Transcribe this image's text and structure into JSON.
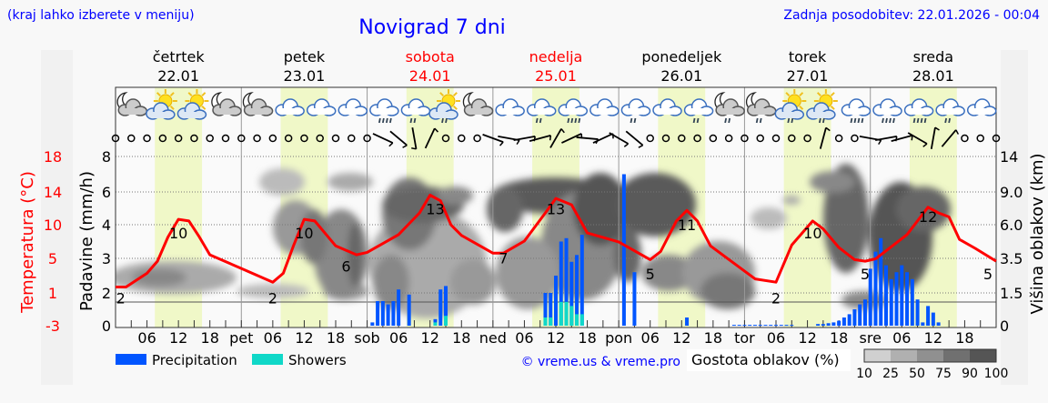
{
  "header": {
    "menu_hint": "(kraj lahko izberete v meniju)",
    "title": "Novigrad 7 dni",
    "updated": "Zadnja posodobitev: 22.01.2026 - 00:04"
  },
  "days": [
    {
      "name": "četrtek",
      "date": "22.01",
      "weekend": false
    },
    {
      "name": "petek",
      "date": "23.01",
      "weekend": false
    },
    {
      "name": "sobota",
      "date": "24.01",
      "weekend": true
    },
    {
      "name": "nedelja",
      "date": "25.01",
      "weekend": true
    },
    {
      "name": "ponedeljek",
      "date": "26.01",
      "weekend": false
    },
    {
      "name": "torek",
      "date": "27.01",
      "weekend": false
    },
    {
      "name": "sreda",
      "date": "28.01",
      "weekend": false
    }
  ],
  "colors": {
    "temperature": "#ff0000",
    "precipitation": "#0055ff",
    "showers": "#10d8c8",
    "daylight": "#f0f8c8",
    "weekend": "#ff0000",
    "link": "#0000ff"
  },
  "chart_data": {
    "type": "line",
    "title": "Novigrad 7 dni",
    "x_unit": "hours from 22.01 00:00",
    "xlim": [
      0,
      168
    ],
    "x_tick_labels": [
      "",
      "06",
      "12",
      "18",
      "pet",
      "06",
      "12",
      "18",
      "sob",
      "06",
      "12",
      "18",
      "ned",
      "06",
      "12",
      "18",
      "pon",
      "06",
      "12",
      "18",
      "tor",
      "06",
      "12",
      "18",
      "sre",
      "06",
      "12",
      "18"
    ],
    "left_axis_temp": {
      "label": "Temperatura (°C)",
      "ticks": [
        "18",
        "14",
        "10",
        "5",
        "1",
        "-3"
      ],
      "ylim": [
        -3,
        18
      ]
    },
    "left_axis_precip": {
      "label": "Padavine (mm/h)",
      "ticks": [
        "8",
        "6",
        "4",
        "3",
        "2",
        "0"
      ]
    },
    "right_axis_cloud": {
      "label": "Višina oblakov (km)",
      "ticks": [
        "14",
        "9.0",
        "6.0",
        "3.5",
        "1.5",
        "0"
      ]
    },
    "temperature": [
      [
        0,
        1.8
      ],
      [
        2,
        1.8
      ],
      [
        6,
        3.5
      ],
      [
        8,
        5
      ],
      [
        10,
        8
      ],
      [
        12,
        10.2
      ],
      [
        14,
        10
      ],
      [
        16,
        8
      ],
      [
        18,
        5.8
      ],
      [
        24,
        4.1
      ],
      [
        30,
        2.4
      ],
      [
        32,
        3.5
      ],
      [
        34,
        7
      ],
      [
        36,
        10.2
      ],
      [
        38,
        10
      ],
      [
        42,
        6.9
      ],
      [
        46,
        5.8
      ],
      [
        48,
        6.1
      ],
      [
        54,
        8.3
      ],
      [
        58,
        11
      ],
      [
        60,
        13.2
      ],
      [
        62,
        12.5
      ],
      [
        64,
        9.5
      ],
      [
        66,
        8.2
      ],
      [
        72,
        6
      ],
      [
        74,
        6
      ],
      [
        78,
        7.5
      ],
      [
        82,
        11
      ],
      [
        84,
        12.8
      ],
      [
        87,
        12
      ],
      [
        90,
        8.5
      ],
      [
        96,
        7.4
      ],
      [
        102,
        5.2
      ],
      [
        104,
        6.2
      ],
      [
        107,
        10
      ],
      [
        109,
        11.3
      ],
      [
        111,
        10
      ],
      [
        113.5,
        6.9
      ],
      [
        122,
        2.8
      ],
      [
        126,
        2.4
      ],
      [
        129,
        7
      ],
      [
        133,
        10
      ],
      [
        135,
        9
      ],
      [
        138,
        6.7
      ],
      [
        141,
        5.2
      ],
      [
        143,
        5
      ],
      [
        145,
        5.3
      ],
      [
        149,
        7.3
      ],
      [
        151,
        8.3
      ],
      [
        155,
        11.7
      ],
      [
        157,
        11
      ],
      [
        159,
        10.5
      ],
      [
        161,
        7.7
      ],
      [
        164,
        6.6
      ],
      [
        168,
        5
      ]
    ],
    "temp_labels": [
      [
        1,
        "2"
      ],
      [
        12,
        "10"
      ],
      [
        30,
        "2"
      ],
      [
        36,
        "10"
      ],
      [
        44,
        "6"
      ],
      [
        61,
        "13"
      ],
      [
        74,
        "7"
      ],
      [
        84,
        "13"
      ],
      [
        102,
        "5"
      ],
      [
        109,
        "11"
      ],
      [
        126,
        "2"
      ],
      [
        133,
        "10"
      ],
      [
        143,
        "5"
      ],
      [
        155,
        "12"
      ],
      [
        168,
        "5"
      ]
    ],
    "precipitation": [
      [
        49,
        0.2,
        0
      ],
      [
        50,
        1.5,
        0
      ],
      [
        51,
        1.5,
        0
      ],
      [
        52,
        1.3,
        0
      ],
      [
        53,
        1.5,
        0
      ],
      [
        54,
        2.1,
        0
      ],
      [
        56,
        1.9,
        0
      ],
      [
        61,
        0.4,
        0.2
      ],
      [
        62,
        2.1,
        0
      ],
      [
        63,
        2.2,
        0.6
      ],
      [
        82,
        2.0,
        0.5
      ],
      [
        83,
        2.0,
        0.5
      ],
      [
        84,
        2.5,
        0
      ],
      [
        85,
        3.5,
        1.45
      ],
      [
        86,
        3.6,
        1.45
      ],
      [
        87,
        2.9,
        1.2
      ],
      [
        88,
        3.1,
        0.7
      ],
      [
        89,
        3.7,
        0.7
      ],
      [
        97,
        7.0,
        0
      ],
      [
        99,
        2.6,
        0
      ],
      [
        109,
        0.5,
        0
      ],
      [
        118,
        0.05,
        0
      ],
      [
        119,
        0.05,
        0
      ],
      [
        120,
        0.05,
        0
      ],
      [
        121,
        0.05,
        0
      ],
      [
        122,
        0.05,
        0
      ],
      [
        123,
        0.05,
        0
      ],
      [
        124,
        0.05,
        0
      ],
      [
        125,
        0.05,
        0
      ],
      [
        126,
        0.05,
        0
      ],
      [
        127,
        0.05,
        0
      ],
      [
        128,
        0.05,
        0
      ],
      [
        129,
        0.05,
        0
      ],
      [
        134,
        0.1,
        0
      ],
      [
        135,
        0.1,
        0
      ],
      [
        136,
        0.15,
        0
      ],
      [
        137,
        0.2,
        0
      ],
      [
        138,
        0.3,
        0
      ],
      [
        139,
        0.5,
        0
      ],
      [
        140,
        0.7,
        0
      ],
      [
        141,
        1.0,
        0
      ],
      [
        142,
        1.3,
        0
      ],
      [
        143,
        1.6,
        0
      ],
      [
        144,
        2.7,
        0
      ],
      [
        145,
        3.2,
        0
      ],
      [
        146,
        3.6,
        0
      ],
      [
        147,
        2.8,
        0
      ],
      [
        148,
        2.4,
        0
      ],
      [
        149,
        2.6,
        0
      ],
      [
        150,
        2.8,
        0
      ],
      [
        151,
        2.6,
        0
      ],
      [
        152,
        2.4,
        0
      ],
      [
        153,
        1.6,
        0
      ],
      [
        154,
        0.2,
        0
      ],
      [
        155,
        1.2,
        0
      ],
      [
        156,
        0.8,
        0
      ],
      [
        157,
        0.2,
        0
      ]
    ],
    "weather_icons": [
      "moon-cloud",
      "sun-cloud",
      "sun-cloud",
      "moon-cloud",
      "moon-cloud",
      "cloud",
      "cloud",
      "cloud",
      "cloud-heavy-rain",
      "cloud-rain",
      "sun-cloud-rain",
      "moon-cloud",
      "cloud",
      "cloud-rain",
      "cloud-heavy-rain",
      "cloud",
      "cloud-rain",
      "cloud",
      "cloud-rain",
      "moon-cloud-rain",
      "moon-cloud-rain",
      "sun-cloud-rain",
      "sun-cloud-rain",
      "cloud-heavy-rain",
      "cloud-heavy-rain",
      "cloud-heavy-rain",
      "cloud-rain",
      "cloud"
    ],
    "wind": [
      "calm",
      "calm",
      "calm",
      "calm",
      "calm",
      "calm",
      "calm",
      "calm",
      "calm",
      "calm",
      "calm",
      "calm",
      "calm",
      "calm",
      "calm",
      "calm",
      "calm",
      25,
      40,
      80,
      -65,
      "calm",
      "calm",
      "calm",
      20,
      10,
      -10,
      -15,
      -60,
      -25,
      5,
      -25,
      30,
      40,
      "calm",
      "calm",
      "calm",
      "calm",
      "calm",
      "calm",
      "calm",
      "calm",
      "calm",
      "calm",
      "calm",
      -75,
      "calm",
      "calm",
      10,
      -10,
      -15,
      30,
      -80,
      -50,
      "calm",
      "calm",
      "calm"
    ],
    "legend": {
      "precipitation": "Precipitation",
      "showers": "Showers",
      "cloud_title": "Gostota oblakov (%)",
      "cloud_levels": [
        "10",
        "25",
        "50",
        "75",
        "90",
        "100"
      ]
    },
    "credit": "© vreme.us & vreme.pro"
  }
}
